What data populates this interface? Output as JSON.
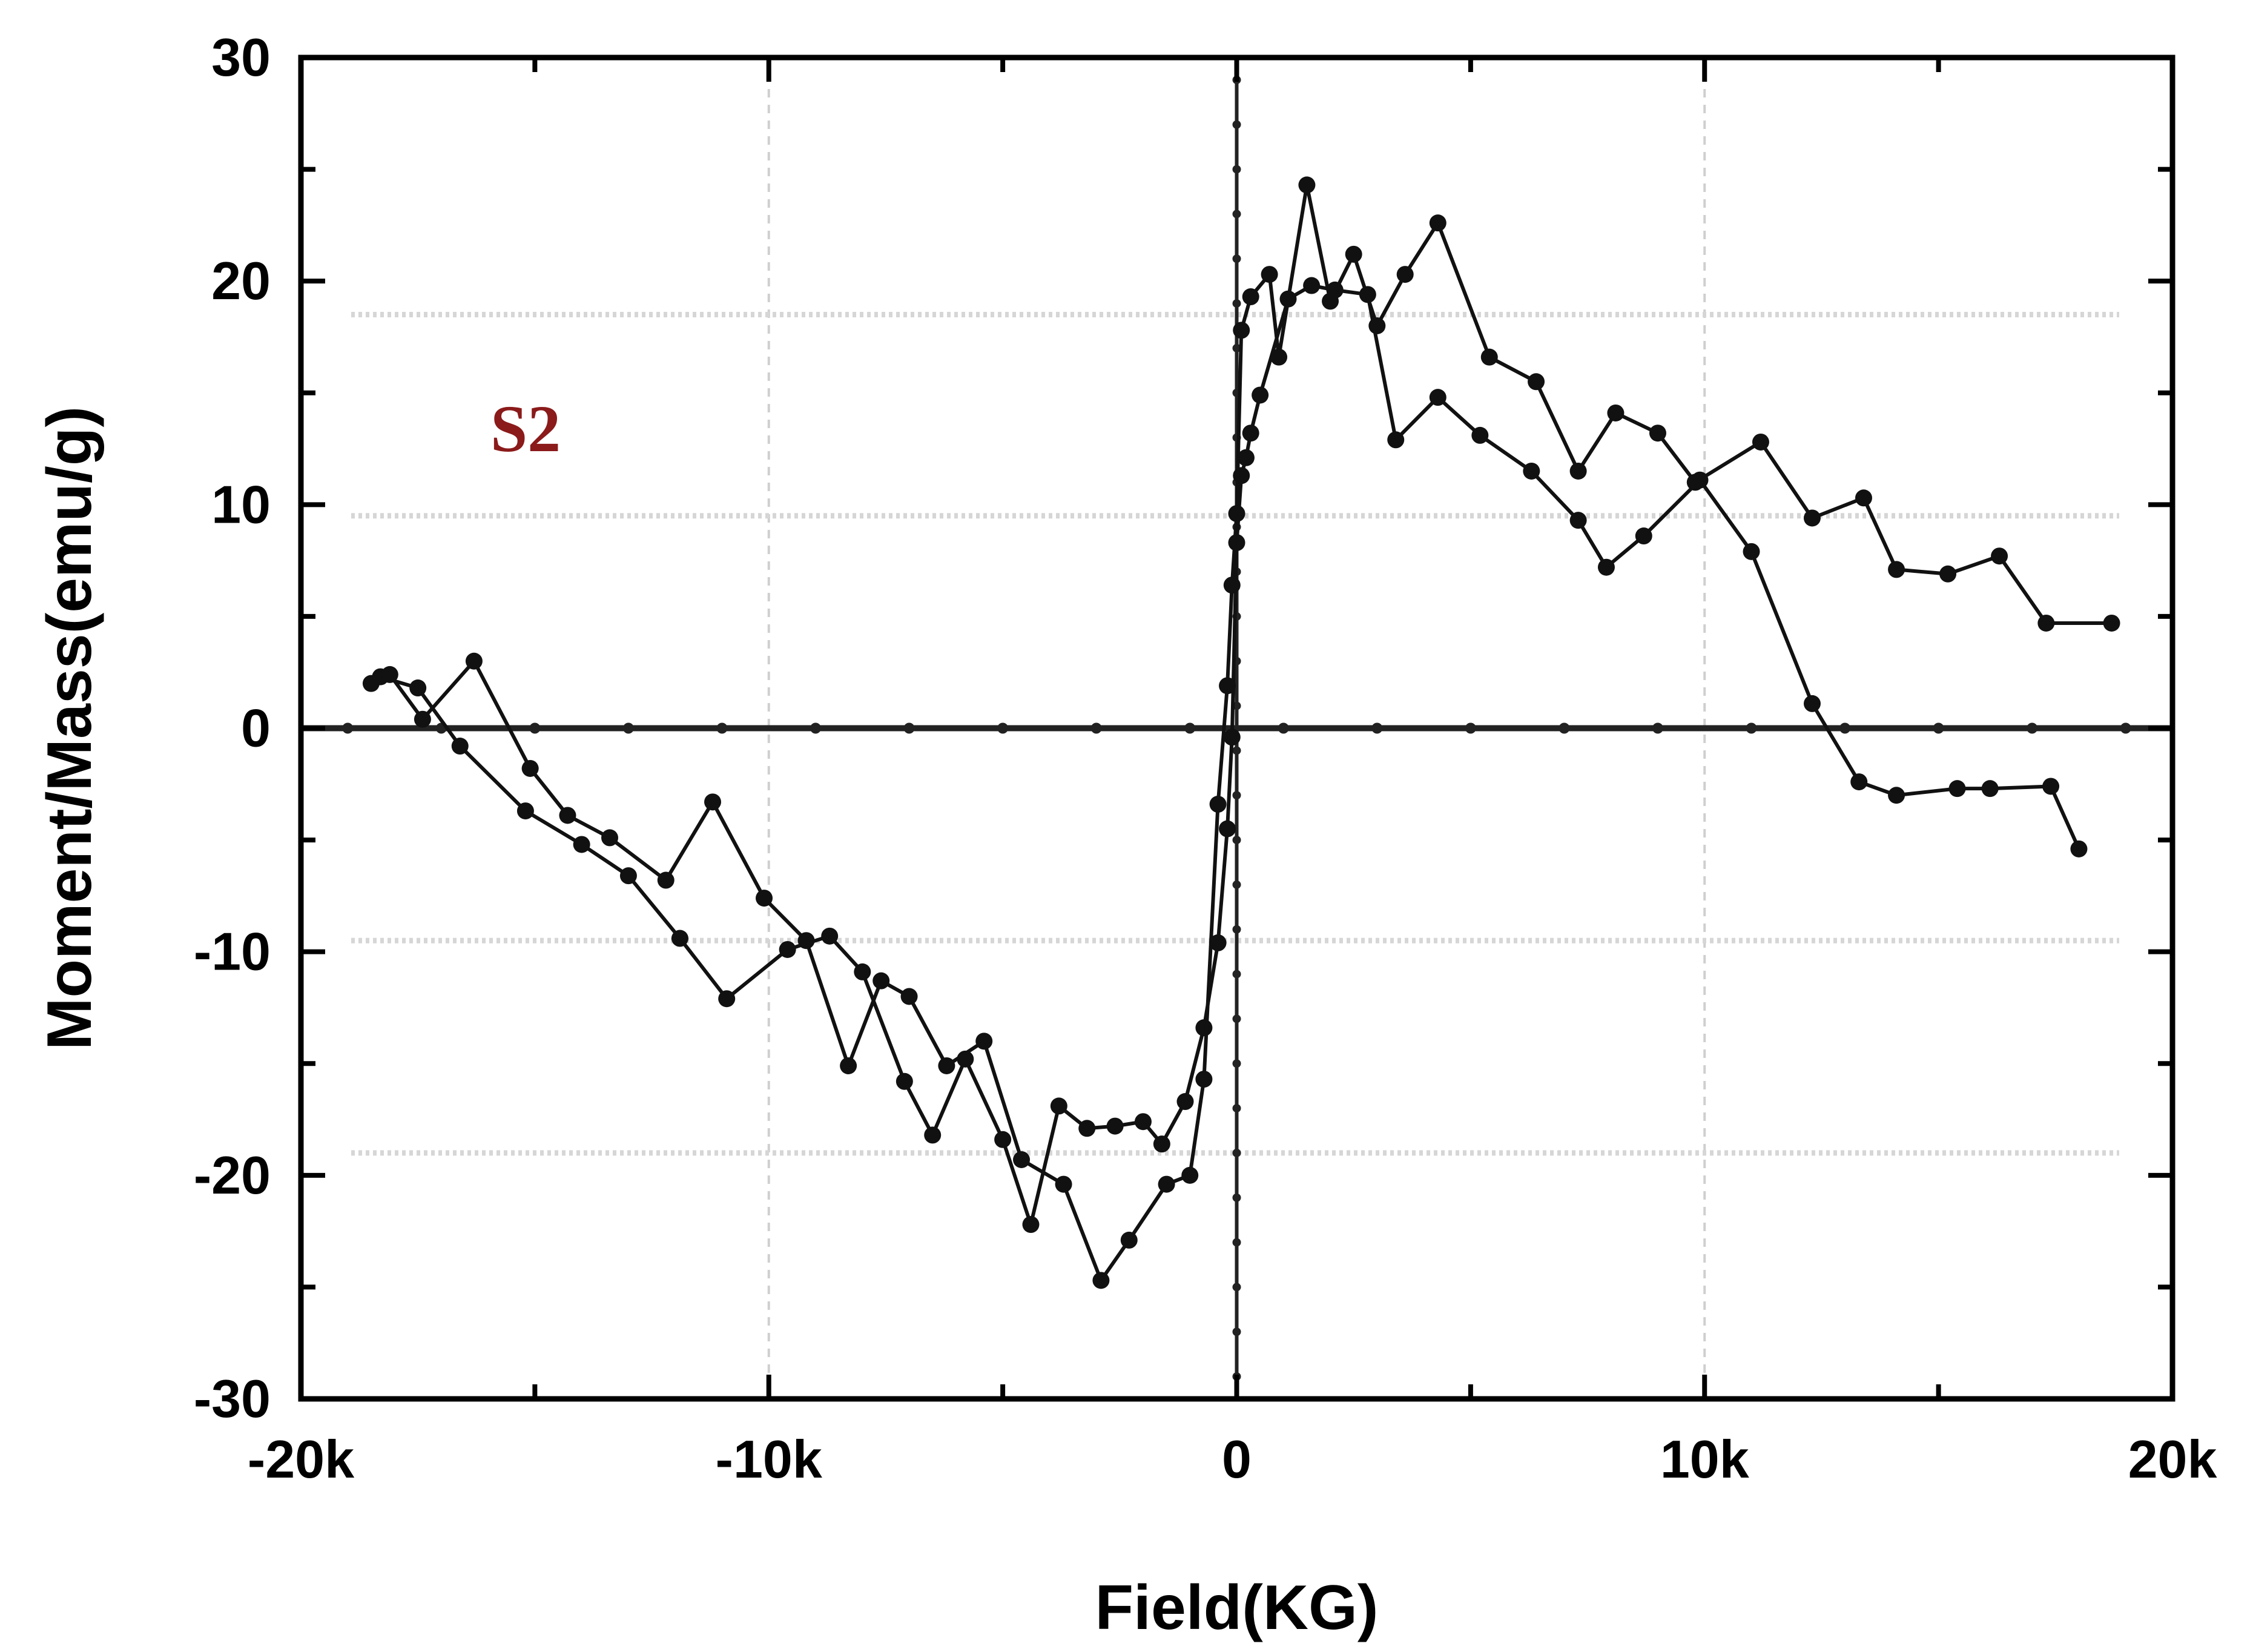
{
  "chart_data": {
    "type": "line",
    "title": "",
    "xlabel": "Field(KG)",
    "ylabel": "Moment/Mass(emu/g)",
    "annotation": "S2",
    "annotation_color": "#8b1a1a",
    "line_color": "#111111",
    "xlim": [
      -20000,
      20000
    ],
    "ylim": [
      -30,
      30
    ],
    "xticks": [
      -20000,
      -10000,
      0,
      10000,
      20000
    ],
    "xtick_labels": [
      "-20k",
      "-10k",
      "0",
      "10k",
      "20k"
    ],
    "yticks": [
      -30,
      -20,
      -10,
      0,
      10,
      20,
      30
    ],
    "ytick_labels": [
      "-30",
      "-20",
      "-10",
      "0",
      "10",
      "20",
      "30"
    ],
    "grid": true,
    "series": [
      {
        "x": [
          -18500,
          -18300,
          -17500,
          -16600,
          -15200,
          -14000,
          -13000,
          -11900,
          -10900,
          -9600,
          -8700,
          -8000,
          -7100,
          -6500,
          -5800,
          -5000,
          -4400,
          -3800,
          -3200,
          -2600,
          -2000,
          -1600,
          -1100,
          -700,
          -400,
          -200,
          -100,
          0,
          100,
          200,
          300,
          500,
          1100,
          1600,
          2100,
          2800,
          3400,
          4300,
          5200,
          6300,
          7300,
          7900,
          8700,
          9900,
          11000,
          12300,
          13300,
          14100,
          15400,
          16100,
          17400,
          18000
        ],
        "values": [
          2,
          2.3,
          1.8,
          -0.8,
          -3.7,
          -5.2,
          -6.6,
          -9.4,
          -12.1,
          -9.9,
          -9.3,
          -10.9,
          -15.8,
          -18.2,
          -14.8,
          -18.4,
          -22.2,
          -16.9,
          -17.9,
          -17.8,
          -17.6,
          -18.6,
          -16.7,
          -13.4,
          -9.6,
          -4.5,
          -0.4,
          8.3,
          11.3,
          12.1,
          13.2,
          14.9,
          19.2,
          19.8,
          19.6,
          19.4,
          12.9,
          14.8,
          13.1,
          11.5,
          9.3,
          7.2,
          8.6,
          11.1,
          7.9,
          1.1,
          -2.4,
          -3.0,
          -2.7,
          -2.7,
          -2.6,
          -5.4
        ]
      },
      {
        "x": [
          -18100,
          -17400,
          -16300,
          -15100,
          -14300,
          -13400,
          -12200,
          -11200,
          -10100,
          -9200,
          -8300,
          -7600,
          -7000,
          -6200,
          -5400,
          -4600,
          -3700,
          -2900,
          -2300,
          -1500,
          -1000,
          -700,
          -400,
          -200,
          -100,
          0,
          100,
          300,
          700,
          900,
          1500,
          2000,
          2500,
          3000,
          3600,
          4300,
          5400,
          6400,
          7300,
          8100,
          9000,
          9800,
          11200,
          12300,
          13400,
          14100,
          15200,
          16300,
          17300,
          18700
        ],
        "values": [
          2.4,
          0.4,
          3.0,
          -1.8,
          -3.9,
          -4.9,
          -6.8,
          -3.3,
          -7.6,
          -9.5,
          -15.1,
          -11.3,
          -12.0,
          -15.1,
          -14.0,
          -19.3,
          -20.4,
          -24.7,
          -22.9,
          -20.4,
          -20.0,
          -15.7,
          -3.4,
          1.9,
          6.4,
          9.6,
          17.8,
          19.3,
          20.3,
          16.6,
          24.3,
          19.1,
          21.2,
          18.0,
          20.3,
          22.6,
          16.6,
          15.5,
          11.5,
          14.1,
          13.2,
          11.0,
          12.8,
          9.4,
          10.3,
          7.1,
          6.9,
          7.7,
          4.7,
          4.7
        ]
      }
    ]
  }
}
